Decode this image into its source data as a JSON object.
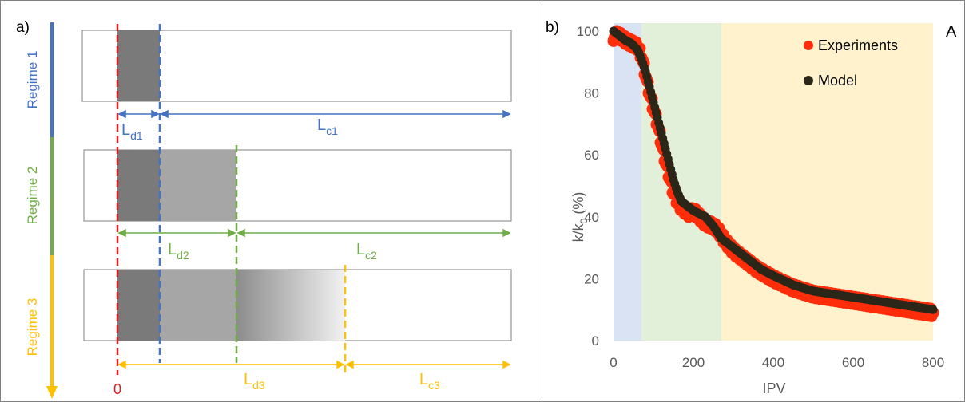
{
  "panel_a": {
    "label": "a)",
    "regimes": [
      {
        "label": "Regime 1",
        "color": "#4472c4"
      },
      {
        "label": "Regime 2",
        "color": "#70ad47"
      },
      {
        "label": "Regime 3",
        "color": "#ffc000"
      }
    ],
    "zero_label": "0",
    "lengths": {
      "d1": {
        "main": "L",
        "sub": "d1"
      },
      "c1": {
        "main": "L",
        "sub": "c1"
      },
      "d2": {
        "main": "L",
        "sub": "d2"
      },
      "c2": {
        "main": "L",
        "sub": "c2"
      },
      "d3": {
        "main": "L",
        "sub": "d3"
      },
      "c3": {
        "main": "L",
        "sub": "c3"
      }
    },
    "marker_color": "#e02020"
  },
  "panel_b": {
    "label": "b)",
    "corner_label": "A",
    "chart_data": {
      "type": "scatter",
      "xlabel": "IPV",
      "ylabel_main": "k/k",
      "ylabel_sub": "0",
      "ylabel_unit": " (%)",
      "xlim": [
        0,
        800
      ],
      "ylim": [
        0,
        100
      ],
      "xticks": [
        0,
        200,
        400,
        600,
        800
      ],
      "yticks": [
        0,
        20,
        40,
        60,
        80,
        100
      ],
      "regions": [
        {
          "from": 0,
          "to": 70,
          "color": "#dae3f3"
        },
        {
          "from": 70,
          "to": 270,
          "color": "#e2efd9"
        },
        {
          "from": 270,
          "to": 800,
          "color": "#fff2cc"
        }
      ],
      "series": [
        {
          "name": "Experiments",
          "color": "#ff2d0a",
          "x": [
            0,
            10,
            20,
            30,
            45,
            60,
            70,
            80,
            90,
            100,
            110,
            120,
            130,
            140,
            150,
            160,
            170,
            180,
            190,
            200,
            215,
            230,
            250,
            260,
            280,
            300,
            330,
            360,
            400,
            450,
            500,
            550,
            600,
            650,
            700,
            750,
            800
          ],
          "y": [
            98,
            99,
            98,
            97,
            96,
            95,
            92,
            86,
            80,
            75,
            70,
            64,
            58,
            53,
            48,
            45,
            43,
            42,
            41,
            42,
            40,
            38,
            37,
            36,
            32,
            29,
            26,
            23,
            20,
            17,
            15,
            14,
            13,
            12,
            11,
            10,
            9
          ]
        },
        {
          "name": "Model",
          "color": "#2b2618",
          "x": [
            0,
            10,
            20,
            30,
            45,
            60,
            70,
            80,
            90,
            100,
            110,
            120,
            130,
            140,
            150,
            160,
            170,
            180,
            190,
            200,
            215,
            230,
            250,
            270,
            290,
            310,
            340,
            370,
            400,
            450,
            500,
            550,
            600,
            650,
            700,
            750,
            800
          ],
          "y": [
            100,
            99,
            98,
            97,
            96,
            94,
            91,
            87,
            82,
            77,
            72,
            67,
            62,
            57,
            52,
            48,
            45,
            44,
            43,
            42,
            41,
            40,
            37,
            33,
            31,
            29,
            26,
            23,
            21,
            18,
            16,
            15,
            14,
            13,
            12,
            11,
            10
          ]
        }
      ],
      "legend": "top-right"
    }
  }
}
